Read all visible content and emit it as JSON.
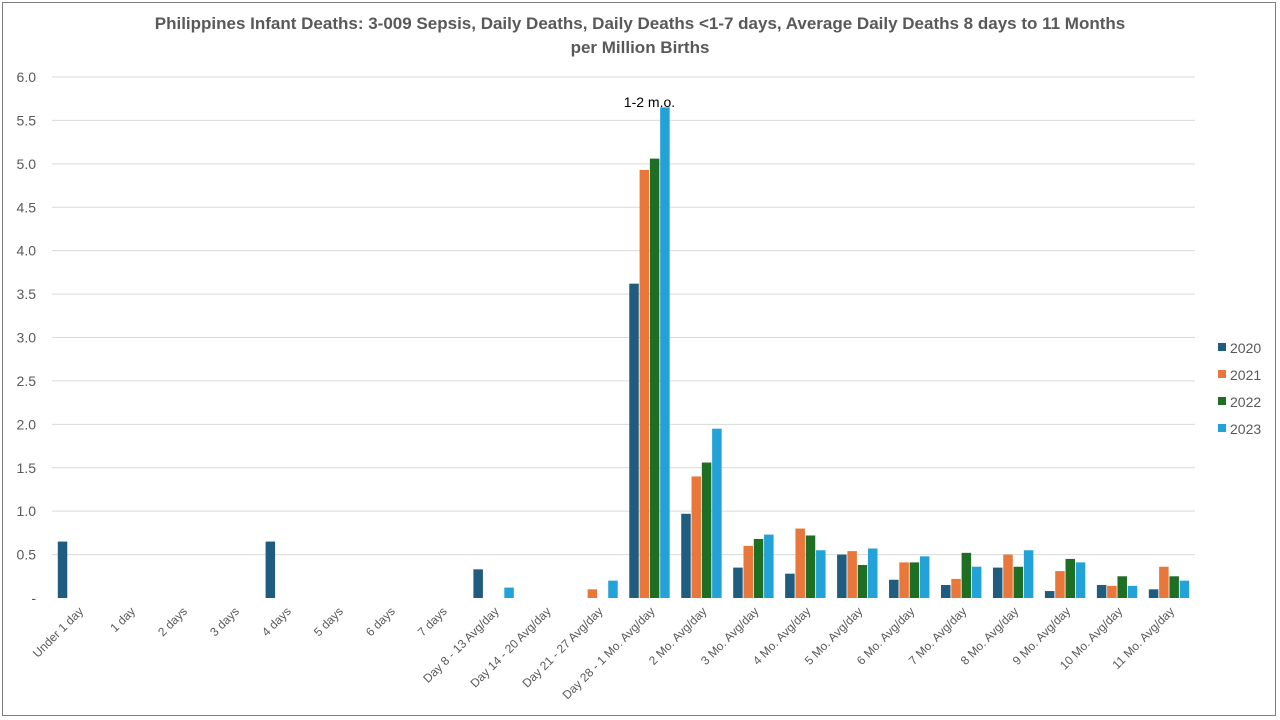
{
  "chart_data": {
    "type": "bar",
    "title": "Philippines Infant Deaths: 3-009 Sepsis, Daily Deaths, Daily Deaths <1-7 days, Average Daily Deaths 8 days to 11 Months per Million Births",
    "xlabel": "",
    "ylabel": "",
    "ylim": [
      0,
      6
    ],
    "yticks": [
      {
        "value": 0,
        "label": "-"
      },
      {
        "value": 0.5,
        "label": "0.5"
      },
      {
        "value": 1,
        "label": "1.0"
      },
      {
        "value": 1.5,
        "label": "1.5"
      },
      {
        "value": 2,
        "label": "2.0"
      },
      {
        "value": 2.5,
        "label": "2.5"
      },
      {
        "value": 3,
        "label": "3.0"
      },
      {
        "value": 3.5,
        "label": "3.5"
      },
      {
        "value": 4,
        "label": "4.0"
      },
      {
        "value": 4.5,
        "label": "4.5"
      },
      {
        "value": 5,
        "label": "5.0"
      },
      {
        "value": 5.5,
        "label": "5.5"
      },
      {
        "value": 6,
        "label": "6.0"
      }
    ],
    "grid": true,
    "legend_position": "right",
    "categories": [
      "Under 1 day",
      "1 day",
      "2 days",
      "3 days",
      "4 days",
      "5 days",
      "6 days",
      "7 days",
      "Day 8 - 13 Avg/day",
      "Day 14 - 20 Avg/day",
      "Day 21 - 27 Avg/day",
      "Day 28 - 1 Mo. Avg/day",
      "2 Mo. Avg/day",
      "3 Mo. Avg/day",
      "4 Mo. Avg/day",
      "5 Mo. Avg/day",
      "6 Mo. Avg/day",
      "7 Mo. Avg/day",
      "8 Mo. Avg/day",
      "9 Mo. Avg/day",
      "10 Mo. Avg/day",
      "11 Mo. Avg/day"
    ],
    "series": [
      {
        "name": "2020",
        "color": "#1f5c7e",
        "values": [
          0.65,
          0,
          0,
          0,
          0.65,
          0,
          0,
          0,
          0.33,
          0,
          0,
          3.62,
          0.97,
          0.35,
          0.28,
          0.5,
          0.21,
          0.15,
          0.35,
          0.08,
          0.15,
          0.1
        ]
      },
      {
        "name": "2021",
        "color": "#e9773b",
        "values": [
          0,
          0,
          0,
          0,
          0,
          0,
          0,
          0,
          0,
          0,
          0.1,
          4.93,
          1.4,
          0.6,
          0.8,
          0.54,
          0.41,
          0.22,
          0.5,
          0.31,
          0.14,
          0.36
        ]
      },
      {
        "name": "2022",
        "color": "#1e6e24",
        "values": [
          0,
          0,
          0,
          0,
          0,
          0,
          0,
          0,
          0,
          0,
          0,
          5.06,
          1.56,
          0.68,
          0.72,
          0.38,
          0.41,
          0.52,
          0.36,
          0.45,
          0.25,
          0.25
        ]
      },
      {
        "name": "2023",
        "color": "#22a2d6",
        "values": [
          0,
          0,
          0,
          0,
          0,
          0,
          0,
          0,
          0.12,
          0,
          0.2,
          5.65,
          1.95,
          0.73,
          0.55,
          0.57,
          0.48,
          0.36,
          0.55,
          0.41,
          0.14,
          0.2
        ]
      }
    ],
    "annotations": [
      {
        "text": "1-2 m.o.",
        "category": "Day 28 - 1 Mo. Avg/day",
        "y": 5.7
      }
    ]
  }
}
